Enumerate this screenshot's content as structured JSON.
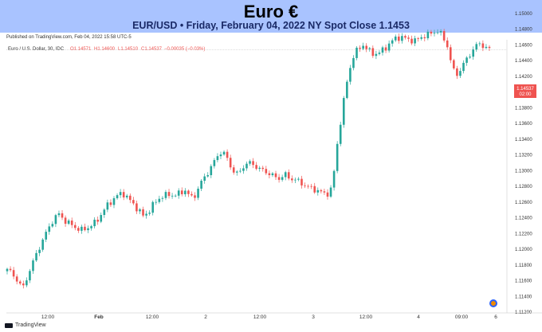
{
  "banner": {
    "title": "Euro €",
    "subtitle": "EUR/USD • Friday, February 04, 2022 NY Spot Close 1.1453"
  },
  "published": "Published on TradingView.com, Feb 04, 2022 15:58 UTC-5",
  "legend": {
    "symbol": "Euro / U.S. Dollar, 30, IDC",
    "open": "O1.14571",
    "high": "H1.14600",
    "low": "L1.14510",
    "close": "C1.14537",
    "change": "−0.00035 (−0.03%)"
  },
  "price_label": {
    "price": "1.14537",
    "timer": "02:00"
  },
  "footer": {
    "brand": "TradingView"
  },
  "colors": {
    "up": "#26a69a",
    "down": "#ef5350",
    "banner": "#a9c3ff",
    "price_tag": "#ef5350"
  },
  "chart_data": {
    "type": "candlestick",
    "y_ticks": [
      "1.15000",
      "1.14800",
      "1.14600",
      "1.14400",
      "1.14200",
      "1.14000",
      "1.13800",
      "1.13600",
      "1.13400",
      "1.13200",
      "1.13000",
      "1.12800",
      "1.12600",
      "1.12400",
      "1.12200",
      "1.12000",
      "1.11800",
      "1.11600",
      "1.11400",
      "1.11200"
    ],
    "ylim": [
      1.1115,
      1.1515
    ],
    "x_ticks": [
      "12:00",
      "Feb",
      "12:00",
      "2",
      "12:00",
      "3",
      "12:00",
      "4",
      "09:00",
      "6"
    ],
    "last_close": 1.14537,
    "series_close_path": [
      1.1175,
      1.1168,
      1.116,
      1.115,
      1.1168,
      1.1185,
      1.12,
      1.1215,
      1.1228,
      1.124,
      1.1245,
      1.1236,
      1.1232,
      1.1228,
      1.1224,
      1.1226,
      1.123,
      1.1235,
      1.1245,
      1.1255,
      1.1262,
      1.1268,
      1.1272,
      1.1265,
      1.1258,
      1.125,
      1.1242,
      1.1248,
      1.1258,
      1.1265,
      1.1268,
      1.127,
      1.1268,
      1.1272,
      1.1275,
      1.1265,
      1.127,
      1.1285,
      1.1295,
      1.1305,
      1.1318,
      1.1325,
      1.1315,
      1.13,
      1.1295,
      1.1305,
      1.131,
      1.1308,
      1.1302,
      1.13,
      1.1296,
      1.1292,
      1.129,
      1.1295,
      1.129,
      1.1288,
      1.1285,
      1.128,
      1.1278,
      1.1275,
      1.1272,
      1.127,
      1.1278,
      1.1335,
      1.138,
      1.142,
      1.1445,
      1.1455,
      1.146,
      1.1452,
      1.1448,
      1.145,
      1.1455,
      1.1462,
      1.1468,
      1.147,
      1.1468,
      1.1466,
      1.1465,
      1.147,
      1.1472,
      1.1475,
      1.1478,
      1.1472,
      1.1458,
      1.1428,
      1.1422,
      1.1435,
      1.1445,
      1.1455,
      1.1462,
      1.1458,
      1.14537
    ]
  }
}
